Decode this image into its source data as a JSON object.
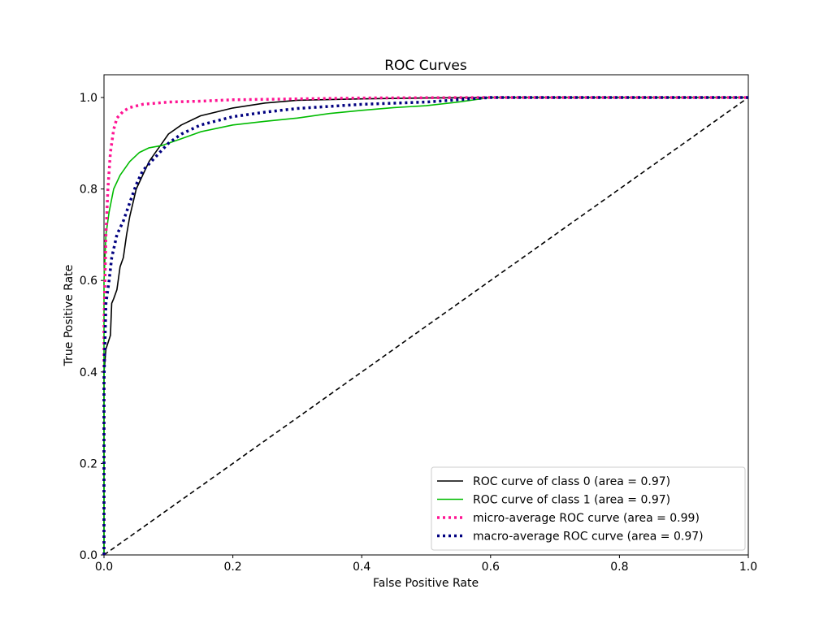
{
  "chart_data": {
    "type": "line",
    "title": "ROC Curves",
    "xlabel": "False Positive Rate",
    "ylabel": "True Positive Rate",
    "xlim": [
      0.0,
      1.0
    ],
    "ylim": [
      0.0,
      1.05
    ],
    "xticks": [
      "0.0",
      "0.2",
      "0.4",
      "0.6",
      "0.8",
      "1.0"
    ],
    "yticks": [
      "0.0",
      "0.2",
      "0.4",
      "0.6",
      "0.8",
      "1.0"
    ],
    "grid": false,
    "legend_position": "lower right",
    "series": [
      {
        "name": "ROC curve of class 0 (area = 0.97)",
        "color": "#000000",
        "style": "solid",
        "x": [
          0.0,
          0.0,
          0.003,
          0.01,
          0.012,
          0.015,
          0.02,
          0.025,
          0.03,
          0.035,
          0.04,
          0.05,
          0.06,
          0.07,
          0.08,
          0.09,
          0.1,
          0.12,
          0.15,
          0.2,
          0.25,
          0.3,
          0.4,
          0.5,
          0.6,
          0.8,
          1.0
        ],
        "y": [
          0.0,
          0.4,
          0.45,
          0.48,
          0.55,
          0.56,
          0.58,
          0.63,
          0.65,
          0.7,
          0.74,
          0.8,
          0.83,
          0.86,
          0.88,
          0.9,
          0.92,
          0.94,
          0.96,
          0.977,
          0.988,
          0.994,
          0.997,
          0.999,
          1.0,
          1.0,
          1.0
        ]
      },
      {
        "name": "ROC curve of class 1 (area = 0.97)",
        "color": "#00bb00",
        "style": "solid",
        "x": [
          0.0,
          0.0,
          0.003,
          0.008,
          0.015,
          0.025,
          0.04,
          0.055,
          0.07,
          0.09,
          0.1,
          0.12,
          0.15,
          0.2,
          0.25,
          0.3,
          0.35,
          0.4,
          0.45,
          0.5,
          0.55,
          0.6,
          0.8,
          1.0
        ],
        "y": [
          0.0,
          0.6,
          0.7,
          0.75,
          0.8,
          0.83,
          0.86,
          0.88,
          0.89,
          0.895,
          0.9,
          0.91,
          0.925,
          0.94,
          0.948,
          0.955,
          0.965,
          0.972,
          0.978,
          0.982,
          0.99,
          1.0,
          1.0,
          1.0
        ]
      },
      {
        "name": "micro-average ROC curve (area = 0.99)",
        "color": "#ff1493",
        "style": "dotted",
        "x": [
          0.0,
          0.0,
          0.003,
          0.006,
          0.01,
          0.015,
          0.02,
          0.03,
          0.04,
          0.06,
          0.1,
          0.15,
          0.2,
          0.3,
          0.4,
          0.6,
          1.0
        ],
        "y": [
          0.0,
          0.5,
          0.7,
          0.8,
          0.88,
          0.93,
          0.955,
          0.97,
          0.978,
          0.985,
          0.99,
          0.992,
          0.995,
          0.997,
          0.999,
          1.0,
          1.0
        ]
      },
      {
        "name": "macro-average ROC curve (area = 0.97)",
        "color": "#000080",
        "style": "dotted",
        "x": [
          0.0,
          0.0,
          0.003,
          0.008,
          0.012,
          0.02,
          0.03,
          0.04,
          0.05,
          0.06,
          0.08,
          0.1,
          0.12,
          0.15,
          0.2,
          0.25,
          0.3,
          0.4,
          0.5,
          0.55,
          0.6,
          0.8,
          1.0
        ],
        "y": [
          0.0,
          0.38,
          0.55,
          0.6,
          0.65,
          0.7,
          0.73,
          0.77,
          0.81,
          0.84,
          0.87,
          0.9,
          0.92,
          0.94,
          0.958,
          0.968,
          0.976,
          0.985,
          0.99,
          0.995,
          1.0,
          1.0,
          1.0
        ]
      },
      {
        "name": "chance",
        "color": "#000000",
        "style": "dashed",
        "x": [
          0.0,
          1.0
        ],
        "y": [
          0.0,
          1.0
        ]
      }
    ]
  },
  "legend": {
    "items": [
      {
        "label": "ROC curve of class 0 (area = 0.97)",
        "color": "#000000",
        "style": "solid"
      },
      {
        "label": "ROC curve of class 1 (area = 0.97)",
        "color": "#00bb00",
        "style": "solid"
      },
      {
        "label": "micro-average ROC curve (area = 0.99)",
        "color": "#ff1493",
        "style": "dotted"
      },
      {
        "label": "macro-average ROC curve (area = 0.97)",
        "color": "#000080",
        "style": "dotted"
      }
    ]
  }
}
